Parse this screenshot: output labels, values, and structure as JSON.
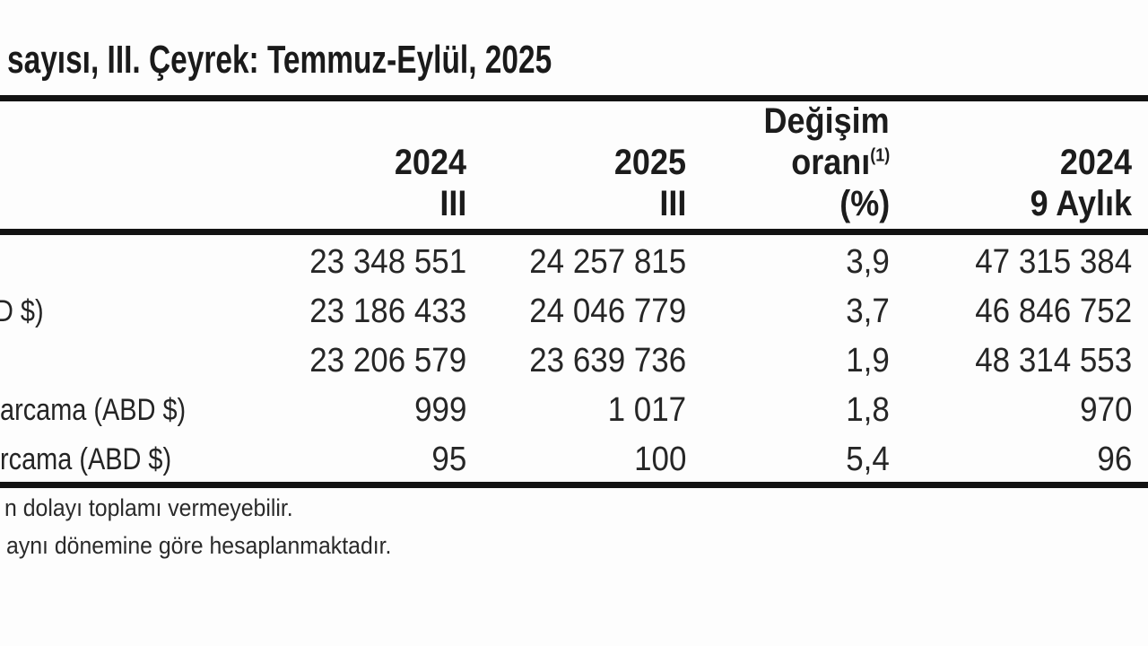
{
  "title": "sayısı, III. Çeyrek: Temmuz-Eylül, 2025",
  "table": {
    "header": {
      "col_2024_q3": {
        "year": "2024",
        "period": "III"
      },
      "col_2025_q3": {
        "year": "2025",
        "period": "III"
      },
      "col_change": {
        "line1": "Değişim",
        "line2": "oranı",
        "line2_sup": "(1)",
        "line3": "(%)"
      },
      "col_2024_9m": {
        "year": "2024",
        "period": "9 Aylık"
      }
    },
    "rows": [
      {
        "label": "",
        "values": [
          "23 348 551",
          "24 257 815",
          "3,9",
          "47 315 384"
        ]
      },
      {
        "label": "D $)",
        "values": [
          "23 186 433",
          "24 046 779",
          "3,7",
          "46 846 752"
        ]
      },
      {
        "label": "",
        "values": [
          "23 206 579",
          "23 639 736",
          "1,9",
          "48 314 553"
        ]
      },
      {
        "label": "arcama (ABD $)",
        "values": [
          "999",
          "1 017",
          "1,8",
          "970"
        ]
      },
      {
        "label": "rcama (ABD $)",
        "values": [
          "95",
          "100",
          "5,4",
          "96"
        ]
      }
    ]
  },
  "footnotes": {
    "note1": "n dolayı toplamı vermeyebilir.",
    "note2": "aynı dönemine göre hesaplanmaktadır."
  },
  "colors": {
    "text": "#1e1e1e",
    "rule": "#131313",
    "background": "#fdfdfd"
  }
}
